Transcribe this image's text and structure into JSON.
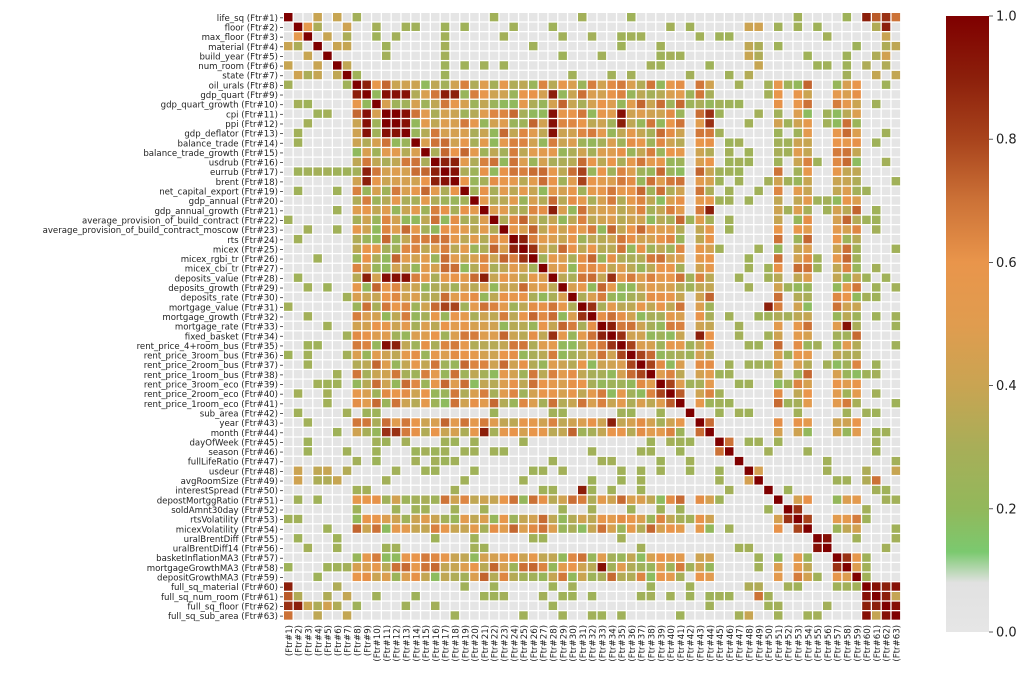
{
  "chart_data": {
    "type": "heatmap",
    "title": "",
    "xlabel": "",
    "ylabel": "",
    "features": [
      "life_sq (Ftr#1)",
      "floor (Ftr#2)",
      "max_floor (Ftr#3)",
      "material (Ftr#4)",
      "build_year (Ftr#5)",
      "num_room (Ftr#6)",
      "state (Ftr#7)",
      "oil_urals (Ftr#8)",
      "gdp_quart (Ftr#9)",
      "gdp_quart_growth (Ftr#10)",
      "cpi (Ftr#11)",
      "ppi (Ftr#12)",
      "gdp_deflator (Ftr#13)",
      "balance_trade (Ftr#14)",
      "balance_trade_growth (Ftr#15)",
      "usdrub (Ftr#16)",
      "eurrub (Ftr#17)",
      "brent (Ftr#18)",
      "net_capital_export (Ftr#19)",
      "gdp_annual (Ftr#20)",
      "gdp_annual_growth (Ftr#21)",
      "average_provision_of_build_contract (Ftr#22)",
      "average_provision_of_build_contract_moscow (Ftr#23)",
      "rts (Ftr#24)",
      "micex (Ftr#25)",
      "micex_rgbi_tr (Ftr#26)",
      "micex_cbi_tr (Ftr#27)",
      "deposits_value (Ftr#28)",
      "deposits_growth (Ftr#29)",
      "deposits_rate (Ftr#30)",
      "mortgage_value (Ftr#31)",
      "mortgage_growth (Ftr#32)",
      "mortgage_rate (Ftr#33)",
      "fixed_basket (Ftr#34)",
      "rent_price_4+room_bus (Ftr#35)",
      "rent_price_3room_bus (Ftr#36)",
      "rent_price_2room_bus (Ftr#37)",
      "rent_price_1room_bus (Ftr#38)",
      "rent_price_3room_eco (Ftr#39)",
      "rent_price_2room_eco (Ftr#40)",
      "rent_price_1room_eco (Ftr#41)",
      "sub_area (Ftr#42)",
      "year (Ftr#43)",
      "month (Ftr#44)",
      "dayOfWeek (Ftr#45)",
      "season (Ftr#46)",
      "fullLifeRatio (Ftr#47)",
      "usdeur (Ftr#48)",
      "avgRoomSize (Ftr#49)",
      "interestSpread (Ftr#50)",
      "depostMortggRatio (Ftr#51)",
      "soldAmnt30day (Ftr#52)",
      "rtsVolatility (Ftr#53)",
      "micexVolatility (Ftr#54)",
      "uralBrentDiff (Ftr#55)",
      "uralBrentDiff14 (Ftr#56)",
      "basketInflationMA3 (Ftr#57)",
      "mortgageGrowthMA3 (Ftr#58)",
      "depositGrowthMA3 (Ftr#59)",
      "full_sq_material (Ftr#60)",
      "full_sq_num_room (Ftr#61)",
      "full_sq_floor (Ftr#62)",
      "full_sq_sub_area (Ftr#63)"
    ],
    "x_tick_labels": [
      "(Ftr#1)",
      "(Ftr#2)",
      "(Ftr#3)",
      "(Ftr#4)",
      "(Ftr#5)",
      "(Ftr#6)",
      "(Ftr#7)",
      "(Ftr#8)",
      "(Ftr#9)",
      "(Ftr#10)",
      "(Ftr#11)",
      "(Ftr#12)",
      "(Ftr#13)",
      "(Ftr#14)",
      "(Ftr#15)",
      "(Ftr#16)",
      "(Ftr#17)",
      "(Ftr#18)",
      "(Ftr#19)",
      "(Ftr#20)",
      "(Ftr#21)",
      "(Ftr#22)",
      "(Ftr#23)",
      "(Ftr#24)",
      "(Ftr#25)",
      "(Ftr#26)",
      "(Ftr#27)",
      "(Ftr#28)",
      "(Ftr#29)",
      "(Ftr#30)",
      "(Ftr#31)",
      "(Ftr#32)",
      "(Ftr#33)",
      "(Ftr#34)",
      "(Ftr#35)",
      "(Ftr#36)",
      "(Ftr#37)",
      "(Ftr#38)",
      "(Ftr#39)",
      "(Ftr#40)",
      "(Ftr#41)",
      "(Ftr#42)",
      "(Ftr#43)",
      "(Ftr#44)",
      "(Ftr#45)",
      "(Ftr#46)",
      "(Ftr#47)",
      "(Ftr#48)",
      "(Ftr#49)",
      "(Ftr#50)",
      "(Ftr#51)",
      "(Ftr#52)",
      "(Ftr#53)",
      "(Ftr#54)",
      "(Ftr#55)",
      "(Ftr#56)",
      "(Ftr#57)",
      "(Ftr#58)",
      "(Ftr#59)",
      "(Ftr#60)",
      "(Ftr#61)",
      "(Ftr#62)",
      "(Ftr#63)"
    ],
    "vmin": 0.0,
    "vmax": 1.0,
    "colorbar_ticks": [
      "0.0",
      "0.2",
      "0.4",
      "0.6",
      "0.8",
      "1.0"
    ],
    "colormap_stops": [
      {
        "v": 0.0,
        "c": "#e6e6e6"
      },
      {
        "v": 0.08,
        "c": "#e1e1e1"
      },
      {
        "v": 0.13,
        "c": "#7bc96f"
      },
      {
        "v": 0.2,
        "c": "#92b85b"
      },
      {
        "v": 0.3,
        "c": "#a8ae58"
      },
      {
        "v": 0.4,
        "c": "#c9a452"
      },
      {
        "v": 0.5,
        "c": "#e09c4f"
      },
      {
        "v": 0.6,
        "c": "#e9954b"
      },
      {
        "v": 0.7,
        "c": "#cc7237"
      },
      {
        "v": 0.8,
        "c": "#a8431c"
      },
      {
        "v": 0.9,
        "c": "#8c1f0b"
      },
      {
        "v": 1.0,
        "c": "#7f0000"
      }
    ],
    "grid_line_color": "#ffffff",
    "matrix_generation": {
      "groups": {
        "A": [
          1,
          2,
          3,
          4,
          5,
          6,
          7,
          48,
          49,
          60,
          61,
          62,
          63
        ],
        "B": [
          8,
          9,
          10,
          11,
          12,
          13,
          14,
          15,
          16,
          17,
          18,
          19,
          20,
          21,
          22,
          23,
          24,
          25,
          26,
          27,
          28,
          29,
          30,
          31,
          32,
          33,
          34,
          35,
          36,
          37,
          38,
          39,
          40,
          41,
          43,
          44,
          51,
          53,
          54,
          57,
          58,
          59
        ]
      },
      "diagonal": 1.0,
      "strong_pairs": [
        [
          1,
          60,
          0.9
        ],
        [
          1,
          61,
          0.75
        ],
        [
          1,
          62,
          0.85
        ],
        [
          1,
          63,
          0.7
        ],
        [
          2,
          62,
          0.9
        ],
        [
          2,
          3,
          0.55
        ],
        [
          60,
          61,
          0.95
        ],
        [
          60,
          62,
          0.9
        ],
        [
          60,
          63,
          0.95
        ],
        [
          61,
          62,
          0.9
        ],
        [
          62,
          63,
          0.95
        ],
        [
          49,
          61,
          0.7
        ],
        [
          9,
          11,
          0.95
        ],
        [
          9,
          12,
          0.95
        ],
        [
          9,
          13,
          0.95
        ],
        [
          11,
          12,
          1.0
        ],
        [
          11,
          13,
          0.95
        ],
        [
          12,
          13,
          0.95
        ],
        [
          17,
          18,
          0.95
        ],
        [
          16,
          17,
          0.9
        ],
        [
          16,
          18,
          0.9
        ],
        [
          9,
          17,
          0.9
        ],
        [
          9,
          18,
          0.9
        ],
        [
          11,
          28,
          0.95
        ],
        [
          12,
          28,
          0.95
        ],
        [
          13,
          28,
          0.95
        ],
        [
          9,
          28,
          0.9
        ],
        [
          21,
          28,
          0.9
        ],
        [
          11,
          35,
          0.95
        ],
        [
          12,
          35,
          0.9
        ],
        [
          28,
          34,
          0.85
        ],
        [
          33,
          34,
          0.9
        ],
        [
          34,
          35,
          0.85
        ],
        [
          33,
          58,
          0.95
        ],
        [
          21,
          44,
          0.9
        ],
        [
          11,
          44,
          0.85
        ],
        [
          12,
          44,
          0.85
        ],
        [
          34,
          43,
          0.9
        ],
        [
          8,
          9,
          0.9
        ],
        [
          24,
          25,
          0.9
        ],
        [
          25,
          26,
          0.85
        ],
        [
          31,
          32,
          0.85
        ],
        [
          17,
          31,
          0.8
        ],
        [
          18,
          31,
          0.8
        ],
        [
          31,
          50,
          0.9
        ],
        [
          52,
          53,
          0.85
        ],
        [
          55,
          56,
          0.95
        ],
        [
          57,
          58,
          0.85
        ],
        [
          35,
          36,
          0.8
        ],
        [
          36,
          37,
          0.8
        ],
        [
          37,
          38,
          0.8
        ],
        [
          39,
          40,
          0.8
        ],
        [
          40,
          41,
          0.75
        ],
        [
          45,
          46,
          0.7
        ],
        [
          53,
          54,
          0.8
        ]
      ],
      "low_rows": [
        42,
        45,
        46,
        47
      ]
    }
  }
}
